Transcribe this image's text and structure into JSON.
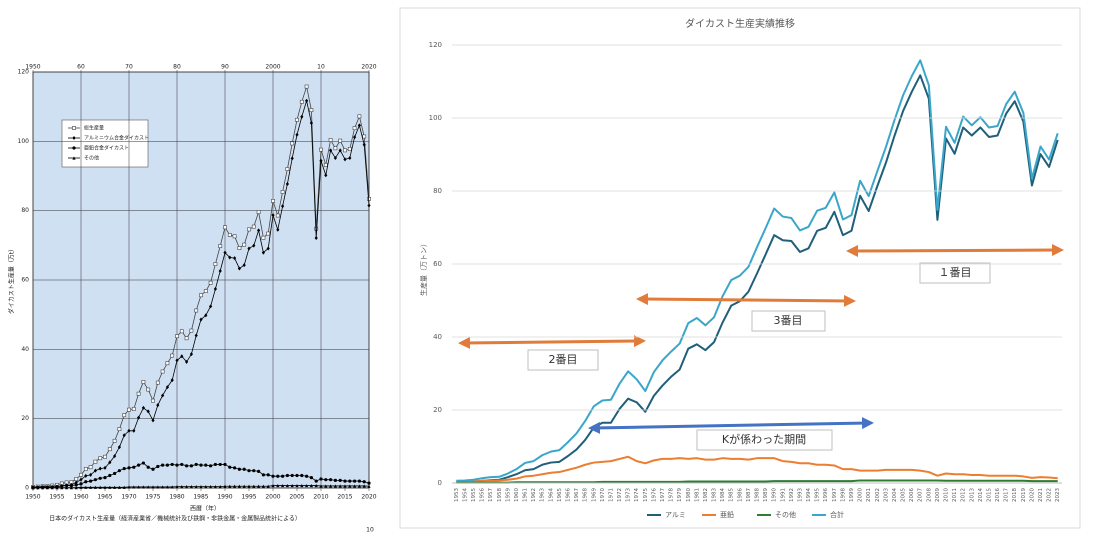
{
  "chart_data": [
    {
      "type": "line",
      "xlabel": "西暦（年）",
      "ylabel": "ダイカスト生産量（万t）",
      "caption": "日本のダイカスト生産量（経済産業省／機械統計及び鉄鋼・非鉄金属・金属製品統計による）",
      "page_number": "10",
      "x": [
        1950,
        1951,
        1952,
        1953,
        1954,
        1955,
        1956,
        1957,
        1958,
        1959,
        1960,
        1961,
        1962,
        1963,
        1964,
        1965,
        1966,
        1967,
        1968,
        1969,
        1970,
        1971,
        1972,
        1973,
        1974,
        1975,
        1976,
        1977,
        1978,
        1979,
        1980,
        1981,
        1982,
        1983,
        1984,
        1985,
        1986,
        1987,
        1988,
        1989,
        1990,
        1991,
        1992,
        1993,
        1994,
        1995,
        1996,
        1997,
        1998,
        1999,
        2000,
        2001,
        2002,
        2003,
        2004,
        2005,
        2006,
        2007,
        2008,
        2009,
        2010,
        2011,
        2012,
        2013,
        2014,
        2015,
        2016,
        2017,
        2018,
        2019,
        2020
      ],
      "xlim": [
        1950,
        2020
      ],
      "xticks": [
        1950,
        1955,
        1960,
        1965,
        1970,
        1975,
        1980,
        1985,
        1990,
        1995,
        2000,
        2005,
        2010,
        2015,
        2020
      ],
      "top_xticks": [
        1950,
        {
          "value": 1960,
          "label": "60"
        },
        {
          "value": 1970,
          "label": "70"
        },
        {
          "value": 1980,
          "label": "80"
        },
        {
          "value": 1990,
          "label": "90"
        },
        2000,
        {
          "value": 2010,
          "label": "10"
        },
        2020
      ],
      "ylim": [
        0,
        120
      ],
      "yticks": [
        0,
        20,
        40,
        60,
        80,
        100,
        120
      ],
      "grid": true,
      "legend": "upper left",
      "series": [
        {
          "name": "総生産量",
          "color": "#444444",
          "marker": "square",
          "values": [
            0.3,
            0.4,
            0.5,
            0.6,
            0.7,
            0.9,
            1.3,
            1.6,
            1.7,
            2.6,
            3.8,
            5.5,
            6.0,
            7.6,
            8.6,
            9.0,
            11.2,
            13.6,
            17.0,
            21.0,
            22.6,
            22.8,
            27.2,
            30.6,
            28.4,
            25.2,
            30.4,
            33.6,
            36.0,
            38.2,
            43.8,
            45.2,
            43.2,
            45.4,
            51.2,
            55.6,
            56.8,
            59.2,
            64.6,
            69.8,
            75.2,
            73.0,
            72.6,
            69.2,
            70.2,
            74.6,
            75.4,
            79.6,
            72.2,
            73.4,
            82.8,
            78.6,
            85.4,
            92.0,
            99.4,
            106.2,
            111.4,
            115.8,
            109.0,
            74.8,
            97.6,
            93.2,
            100.4,
            98.0,
            100.2,
            97.4,
            97.8,
            103.8,
            107.2,
            101.4,
            83.4
          ]
        },
        {
          "name": "アルミニウム合金ダイカスト",
          "color": "#000000",
          "marker": "diamond",
          "values": [
            0,
            0.1,
            0.1,
            0.2,
            0.3,
            0.4,
            0.6,
            0.8,
            0.9,
            1.6,
            2.4,
            3.5,
            3.8,
            5.0,
            5.6,
            5.8,
            7.4,
            9.2,
            11.8,
            15.2,
            16.5,
            16.5,
            20.3,
            23.1,
            22.1,
            19.5,
            23.9,
            26.7,
            29.1,
            31.1,
            36.8,
            38.0,
            36.4,
            38.6,
            44.0,
            48.6,
            49.8,
            52.4,
            57.4,
            62.6,
            67.9,
            66.5,
            66.3,
            63.3,
            64.3,
            69.1,
            69.9,
            74.3,
            67.9,
            69.1,
            78.7,
            74.5,
            81.3,
            87.7,
            95.1,
            101.9,
            107.1,
            111.7,
            105.3,
            72.1,
            94.4,
            90.2,
            97.4,
            95.2,
            97.4,
            94.8,
            95.2,
            101.2,
            104.6,
            99.0,
            81.5
          ]
        },
        {
          "name": "亜鉛合金ダイカスト",
          "color": "#000000",
          "marker": "circle",
          "values": [
            0.2,
            0.2,
            0.3,
            0.3,
            0.3,
            0.4,
            0.6,
            0.7,
            0.7,
            0.9,
            1.2,
            1.8,
            2.0,
            2.4,
            2.8,
            3.0,
            3.6,
            4.2,
            5.0,
            5.6,
            5.8,
            6.0,
            6.6,
            7.2,
            6.0,
            5.4,
            6.2,
            6.6,
            6.6,
            6.8,
            6.6,
            6.8,
            6.4,
            6.4,
            6.8,
            6.6,
            6.6,
            6.4,
            6.8,
            6.8,
            6.8,
            6.0,
            5.8,
            5.4,
            5.4,
            5.0,
            5.0,
            4.8,
            3.8,
            3.8,
            3.4,
            3.4,
            3.4,
            3.6,
            3.6,
            3.6,
            3.6,
            3.4,
            3.0,
            2.0,
            2.6,
            2.4,
            2.4,
            2.2,
            2.2,
            2.0,
            2.0,
            2.0,
            2.0,
            1.8,
            1.4
          ]
        },
        {
          "name": "その他",
          "color": "#000000",
          "marker": "triangle",
          "values": [
            0.1,
            0.1,
            0.1,
            0.1,
            0.1,
            0.1,
            0.1,
            0.1,
            0.1,
            0.1,
            0.2,
            0.2,
            0.2,
            0.2,
            0.2,
            0.2,
            0.2,
            0.2,
            0.2,
            0.2,
            0.3,
            0.3,
            0.3,
            0.3,
            0.3,
            0.3,
            0.3,
            0.3,
            0.3,
            0.3,
            0.4,
            0.4,
            0.4,
            0.4,
            0.4,
            0.4,
            0.4,
            0.4,
            0.4,
            0.4,
            0.5,
            0.5,
            0.5,
            0.5,
            0.5,
            0.5,
            0.5,
            0.5,
            0.5,
            0.5,
            0.7,
            0.7,
            0.7,
            0.7,
            0.7,
            0.7,
            0.7,
            0.7,
            0.7,
            0.7,
            0.6,
            0.6,
            0.6,
            0.6,
            0.6,
            0.6,
            0.6,
            0.6,
            0.6,
            0.6,
            0.5
          ]
        }
      ]
    },
    {
      "type": "line",
      "title": "ダイカスト生産実績推移",
      "ylabel": "生産量（万トン）",
      "categories": [
        1953,
        1954,
        1955,
        1956,
        1957,
        1958,
        1959,
        1960,
        1961,
        1962,
        1963,
        1964,
        1965,
        1966,
        1967,
        1968,
        1969,
        1970,
        1971,
        1972,
        1973,
        1974,
        1975,
        1976,
        1977,
        1978,
        1979,
        1980,
        1981,
        1982,
        1983,
        1984,
        1985,
        1986,
        1987,
        1988,
        1989,
        1990,
        1991,
        1992,
        1993,
        1994,
        1995,
        1996,
        1997,
        1998,
        1999,
        2000,
        2001,
        2002,
        2003,
        2004,
        2005,
        2006,
        2007,
        2008,
        2009,
        2010,
        2011,
        2012,
        2013,
        2014,
        2015,
        2016,
        2017,
        2018,
        2019,
        2020,
        2021,
        2022,
        2023
      ],
      "ylim": [
        0,
        120
      ],
      "yticks": [
        0,
        20,
        40,
        60,
        80,
        100,
        120
      ],
      "grid": true,
      "legend": "bottom",
      "annotations": [
        "１番目",
        "3番目",
        "2番目",
        "Kが係わった期間"
      ],
      "series": [
        {
          "name": "アルミ",
          "color": "#1f5f7a",
          "values": [
            0.2,
            0.3,
            0.4,
            0.6,
            0.8,
            0.9,
            1.6,
            2.4,
            3.5,
            3.8,
            5.0,
            5.6,
            5.8,
            7.4,
            9.2,
            11.8,
            15.2,
            16.5,
            16.5,
            20.3,
            23.1,
            22.1,
            19.5,
            23.9,
            26.7,
            29.1,
            31.1,
            36.8,
            38.0,
            36.4,
            38.6,
            44.0,
            48.6,
            49.8,
            52.4,
            57.4,
            62.6,
            67.9,
            66.5,
            66.3,
            63.3,
            64.3,
            69.1,
            69.9,
            74.3,
            67.9,
            69.1,
            78.7,
            74.5,
            81.3,
            87.7,
            95.1,
            101.9,
            107.1,
            111.7,
            105.3,
            72.1,
            94.4,
            90.2,
            97.4,
            95.2,
            97.4,
            94.8,
            95.2,
            101.2,
            104.6,
            99.0,
            81.5,
            90.1,
            86.6,
            94.0
          ]
        },
        {
          "name": "亜鉛",
          "color": "#ed7d31",
          "values": [
            0.3,
            0.3,
            0.4,
            0.6,
            0.7,
            0.7,
            0.9,
            1.2,
            1.8,
            2.0,
            2.4,
            2.8,
            3.0,
            3.6,
            4.2,
            5.0,
            5.6,
            5.8,
            6.0,
            6.6,
            7.2,
            6.0,
            5.4,
            6.2,
            6.6,
            6.6,
            6.8,
            6.6,
            6.8,
            6.4,
            6.4,
            6.8,
            6.6,
            6.6,
            6.4,
            6.8,
            6.8,
            6.8,
            6.0,
            5.8,
            5.4,
            5.4,
            5.0,
            5.0,
            4.8,
            3.8,
            3.8,
            3.4,
            3.4,
            3.4,
            3.6,
            3.6,
            3.6,
            3.6,
            3.4,
            3.0,
            2.0,
            2.6,
            2.4,
            2.4,
            2.2,
            2.2,
            2.0,
            2.0,
            2.0,
            2.0,
            1.8,
            1.4,
            1.6,
            1.5,
            1.3
          ]
        },
        {
          "name": "その他",
          "color": "#2e7d32",
          "values": [
            0.1,
            0.1,
            0.1,
            0.1,
            0.1,
            0.1,
            0.1,
            0.2,
            0.2,
            0.2,
            0.2,
            0.2,
            0.2,
            0.2,
            0.2,
            0.2,
            0.2,
            0.3,
            0.3,
            0.3,
            0.3,
            0.3,
            0.3,
            0.3,
            0.3,
            0.3,
            0.3,
            0.4,
            0.4,
            0.4,
            0.4,
            0.4,
            0.4,
            0.4,
            0.4,
            0.4,
            0.4,
            0.5,
            0.5,
            0.5,
            0.5,
            0.5,
            0.5,
            0.5,
            0.5,
            0.5,
            0.5,
            0.7,
            0.7,
            0.7,
            0.7,
            0.7,
            0.7,
            0.7,
            0.7,
            0.7,
            0.7,
            0.6,
            0.6,
            0.6,
            0.6,
            0.6,
            0.6,
            0.6,
            0.6,
            0.6,
            0.6,
            0.5,
            0.5,
            0.5,
            0.5
          ]
        },
        {
          "name": "合計",
          "color": "#3aa6c9",
          "values": [
            0.6,
            0.7,
            0.9,
            1.3,
            1.6,
            1.7,
            2.6,
            3.8,
            5.5,
            6.0,
            7.6,
            8.6,
            9.0,
            11.2,
            13.6,
            17.0,
            21.0,
            22.6,
            22.8,
            27.2,
            30.6,
            28.4,
            25.2,
            30.4,
            33.6,
            36.0,
            38.2,
            43.8,
            45.2,
            43.2,
            45.4,
            51.2,
            55.6,
            56.8,
            59.2,
            64.6,
            69.8,
            75.2,
            73.0,
            72.6,
            69.2,
            70.2,
            74.6,
            75.4,
            79.6,
            72.2,
            73.4,
            82.8,
            78.6,
            85.4,
            92.0,
            99.4,
            106.2,
            111.4,
            115.8,
            109.0,
            74.8,
            97.6,
            93.2,
            100.4,
            98.0,
            100.2,
            97.4,
            97.8,
            103.8,
            107.2,
            101.4,
            83.4,
            92.2,
            88.6,
            95.8
          ]
        }
      ]
    }
  ]
}
